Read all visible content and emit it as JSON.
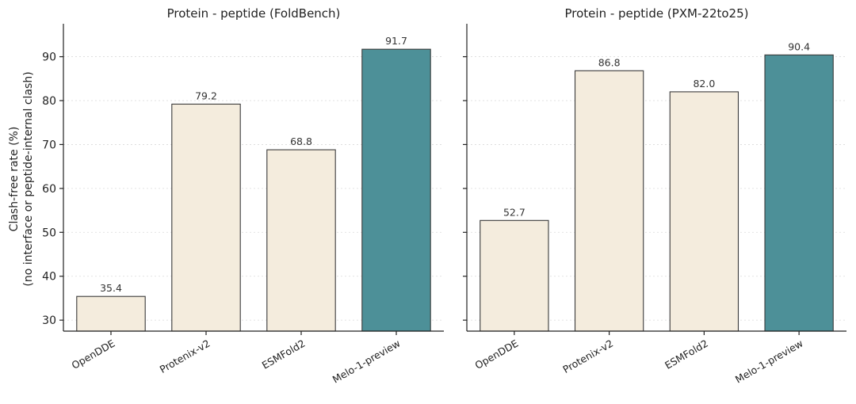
{
  "chart_data": [
    {
      "type": "bar",
      "title": "Protein - peptide (FoldBench)",
      "ylabel_lines": [
        "Clash-free rate (%)",
        "(no interface or peptide-internal clash)"
      ],
      "categories": [
        "OpenDDE",
        "Protenix-v2",
        "ESMFold2",
        "Melo-1-preview"
      ],
      "values": [
        35.4,
        79.2,
        68.8,
        91.7
      ],
      "value_labels": [
        "35.4",
        "79.2",
        "68.8",
        "91.7"
      ],
      "bar_colors": [
        "#f4ecdd",
        "#f4ecdd",
        "#f4ecdd",
        "#4d9098"
      ],
      "ylim": [
        27.5,
        97.5
      ],
      "yticks": [
        30,
        40,
        50,
        60,
        70,
        80,
        90
      ],
      "grid": "horizontal-dotted"
    },
    {
      "type": "bar",
      "title": "Protein - peptide (PXM-22to25)",
      "categories": [
        "OpenDDE",
        "Protenix-v2",
        "ESMFold2",
        "Melo-1-preview"
      ],
      "values": [
        52.7,
        86.8,
        82.0,
        90.4
      ],
      "value_labels": [
        "52.7",
        "86.8",
        "82.0",
        "90.4"
      ],
      "bar_colors": [
        "#f4ecdd",
        "#f4ecdd",
        "#f4ecdd",
        "#4d9098"
      ],
      "ylim": [
        27.5,
        97.5
      ],
      "yticks": [
        30,
        40,
        50,
        60,
        70,
        80,
        90
      ],
      "grid": "horizontal-dotted"
    }
  ]
}
